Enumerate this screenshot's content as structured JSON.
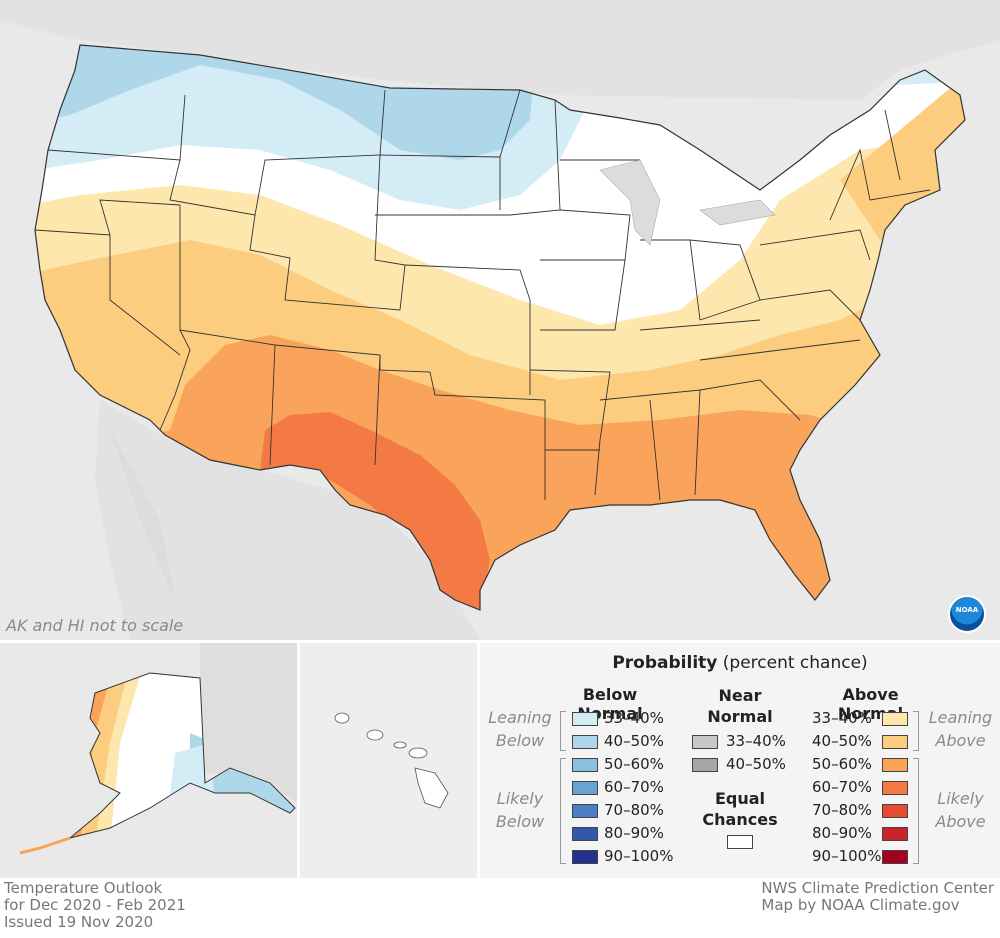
{
  "map": {
    "scale_note": "AK and HI not to scale",
    "logo_text": "NOAA",
    "colors": {
      "background": "#e9e9e9",
      "land_outside": "#e2e2e2",
      "equal_chances": "#ffffff",
      "below_33_40": "#d4ecf5",
      "below_40_50": "#aed8ea",
      "above_33_40": "#fde7ad",
      "above_40_50": "#fccc7f",
      "above_50_60": "#f9a45a",
      "above_60_70": "#f47a45"
    }
  },
  "legend": {
    "title_bold": "Probability",
    "title_rest": "(percent chance)",
    "below_normal": {
      "heading": "Below Normal",
      "leaning_label": [
        "Leaning",
        "Below"
      ],
      "likely_label": [
        "Likely",
        "Below"
      ],
      "items": [
        {
          "label": "33–40%",
          "color": "#d4ecf5"
        },
        {
          "label": "40–50%",
          "color": "#aed8ea"
        },
        {
          "label": "50–60%",
          "color": "#8ac0dd"
        },
        {
          "label": "60–70%",
          "color": "#6aa3d2"
        },
        {
          "label": "70–80%",
          "color": "#4a7fc4"
        },
        {
          "label": "80–90%",
          "color": "#3457ae"
        },
        {
          "label": "90–100%",
          "color": "#23318f"
        }
      ]
    },
    "near_normal": {
      "heading": [
        "Near",
        "Normal"
      ],
      "items": [
        {
          "label": "33–40%",
          "color": "#c8c8c8"
        },
        {
          "label": "40–50%",
          "color": "#a6a6a6"
        }
      ]
    },
    "equal_chances": {
      "heading": [
        "Equal",
        "Chances"
      ],
      "color": "#ffffff"
    },
    "above_normal": {
      "heading": "Above Normal",
      "leaning_label": [
        "Leaning",
        "Above"
      ],
      "likely_label": [
        "Likely",
        "Above"
      ],
      "items": [
        {
          "label": "33–40%",
          "color": "#fde7ad"
        },
        {
          "label": "40–50%",
          "color": "#fccc7f"
        },
        {
          "label": "50–60%",
          "color": "#f9a45a"
        },
        {
          "label": "60–70%",
          "color": "#f47a45"
        },
        {
          "label": "70–80%",
          "color": "#e64a33"
        },
        {
          "label": "80–90%",
          "color": "#c92529"
        },
        {
          "label": "90–100%",
          "color": "#a3001f"
        }
      ]
    }
  },
  "footer": {
    "left": [
      "Temperature Outlook",
      "for Dec 2020 - Feb 2021",
      "Issued 19 Nov 2020"
    ],
    "right": [
      "NWS Climate Prediction Center",
      "Map by NOAA Climate.gov"
    ]
  }
}
